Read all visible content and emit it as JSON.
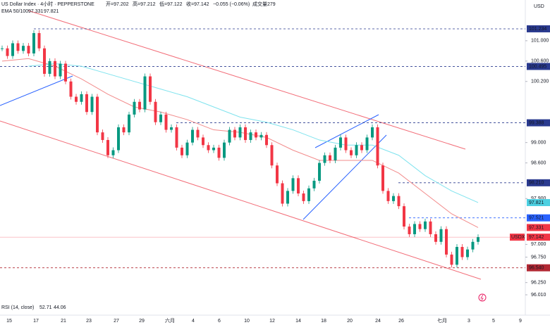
{
  "chart_data": {
    "type": "candlestick",
    "header": {
      "symbol": "US Dollar Index · 4小时 · PEPPERSTONE",
      "open": "开=97.202",
      "high": "高=97.212",
      "low": "低=97.122",
      "close": "收=97.142",
      "change": "−0.055 (−0.06%)",
      "volume": "成交量279",
      "ema_label": "EMA 50/100",
      "ema50_value": "97.331",
      "ema100_value": "97.821",
      "rsi_label": "RSI (14, close)",
      "rsi_value1": "52.71",
      "rsi_value2": "44.06",
      "currency": "USD"
    },
    "up_color": "#089981",
    "down_color": "#f23645",
    "closes": [
      100.85,
      100.7,
      100.95,
      100.8,
      100.9,
      100.75,
      101.15,
      100.85,
      100.35,
      100.6,
      100.3,
      100.55,
      100.2,
      99.9,
      99.8,
      99.95,
      99.6,
      99.9,
      99.2,
      99.05,
      98.75,
      98.85,
      99.3,
      99.2,
      99.55,
      99.8,
      99.65,
      100.3,
      99.8,
      99.4,
      99.55,
      99.25,
      99.3,
      98.9,
      98.75,
      99.0,
      99.25,
      99.1,
      98.95,
      98.85,
      98.9,
      98.7,
      99.0,
      99.25,
      99.1,
      99.3,
      99.05,
      99.2,
      99.1,
      99.15,
      98.95,
      98.55,
      98.2,
      97.8,
      98.05,
      98.3,
      98.0,
      97.85,
      98.1,
      98.25,
      98.6,
      98.75,
      98.65,
      98.9,
      99.1,
      98.85,
      98.75,
      98.95,
      98.85,
      99.1,
      99.3,
      98.55,
      98.05,
      97.85,
      97.95,
      97.75,
      97.35,
      97.2,
      97.4,
      97.3,
      97.45,
      97.2,
      97.05,
      97.3,
      96.8,
      96.6,
      96.95,
      96.75,
      96.9,
      97.05,
      97.142
    ],
    "ema_series": [
      {
        "name": "EMA 50",
        "color": "#f28b8b",
        "values": [
          100.6,
          100.65,
          100.5,
          100.25,
          99.95,
          99.7,
          99.6,
          99.45,
          99.25,
          99.2,
          99.1,
          98.85,
          98.65,
          98.65,
          98.65,
          98.4,
          98.0,
          97.6,
          97.331
        ]
      },
      {
        "name": "EMA 100",
        "color": "#7fe3ee",
        "values": [
          null,
          100.5,
          100.55,
          100.5,
          100.35,
          100.2,
          100.05,
          99.9,
          99.7,
          99.5,
          99.4,
          99.25,
          99.05,
          98.95,
          98.95,
          98.75,
          98.35,
          98.05,
          97.821
        ]
      }
    ],
    "ylim": [
      95.61,
      101.8
    ],
    "yticks": [
      {
        "value": 101,
        "label": "101.000"
      },
      {
        "value": 100.6,
        "label": "100.600"
      },
      {
        "value": 100.2,
        "label": "100.200"
      },
      {
        "value": 99,
        "label": "99.000"
      },
      {
        "value": 98.6,
        "label": "98.600"
      },
      {
        "value": 97.9,
        "label": "97.900"
      },
      {
        "value": 97,
        "label": "97.000"
      },
      {
        "value": 96.75,
        "label": "96.750"
      },
      {
        "value": 96.25,
        "label": "96.250"
      },
      {
        "value": 96.01,
        "label": "96.010"
      }
    ],
    "levels": [
      {
        "value": 101.234,
        "label": "101.234",
        "color": "#2a3a8f"
      },
      {
        "value": 100.495,
        "label": "100.495",
        "color": "#2a3a8f"
      },
      {
        "value": 99.388,
        "label": "99.388",
        "color": "#2a3a8f"
      },
      {
        "value": 98.21,
        "label": "98.210",
        "color": "#2a3a8f"
      },
      {
        "value": 97.521,
        "label": "97.521",
        "color": "#2962ff"
      },
      {
        "value": 96.54,
        "label": "96.540",
        "color": "#b22833"
      }
    ],
    "price_tags": [
      {
        "value": 97.821,
        "label": "97.821",
        "color": "#4dd0e1"
      },
      {
        "value": 97.331,
        "label": "97.331",
        "color": "#f23645"
      },
      {
        "value": 97.142,
        "label": "97.142",
        "color": "#f23645",
        "name": "USDX"
      }
    ],
    "x_labels": [
      "15",
      "17",
      "21",
      "23",
      "27",
      "29",
      "六月",
      "4",
      "6",
      "10",
      "12",
      "14",
      "18",
      "20",
      "24",
      "26",
      "七月",
      "3",
      "5",
      "9"
    ]
  }
}
